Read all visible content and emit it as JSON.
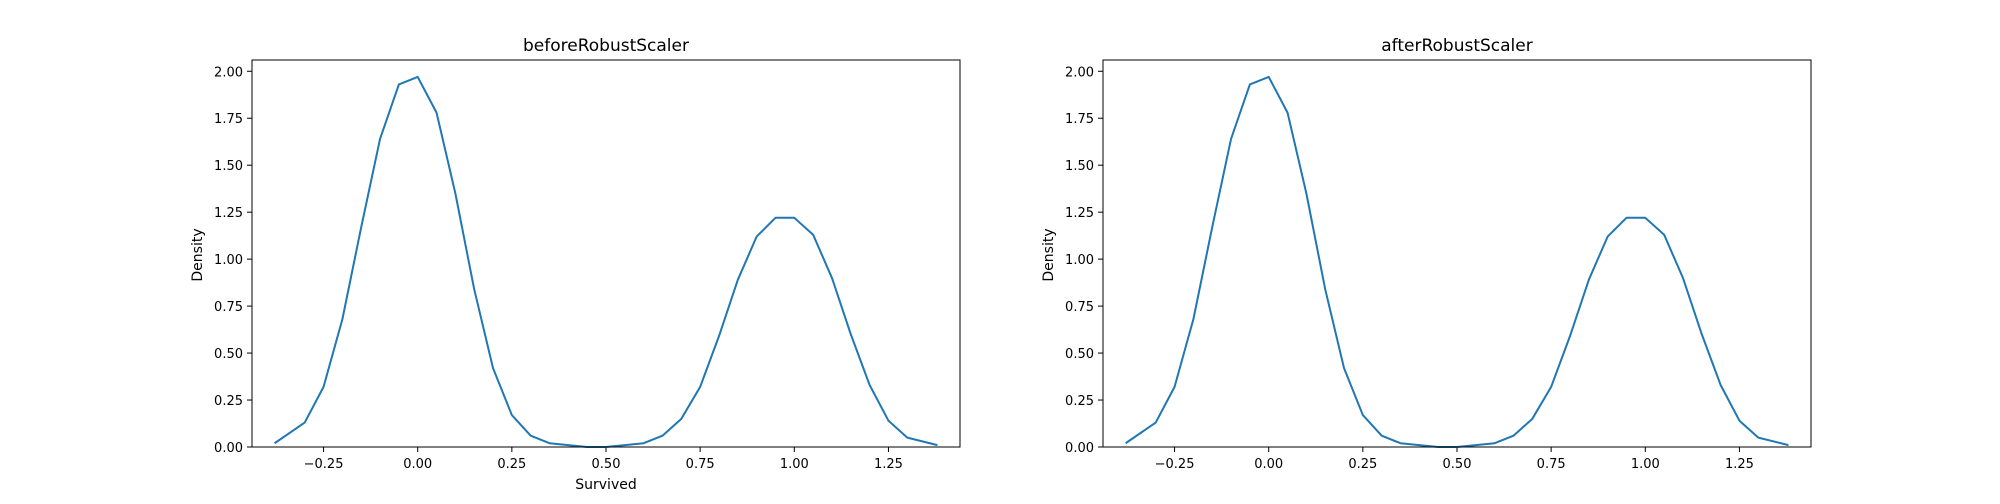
{
  "chart_data": [
    {
      "type": "line",
      "title": "beforeRobustScaler",
      "xlabel": "Survived",
      "ylabel": "Density",
      "xlim": [
        -0.44,
        1.44
      ],
      "ylim": [
        0,
        2.06
      ],
      "xticks": [
        -0.25,
        0.0,
        0.25,
        0.5,
        0.75,
        1.0,
        1.25
      ],
      "xtick_labels": [
        "−0.25",
        "0.00",
        "0.25",
        "0.50",
        "0.75",
        "1.00",
        "1.25"
      ],
      "yticks": [
        0.0,
        0.25,
        0.5,
        0.75,
        1.0,
        1.25,
        1.5,
        1.75,
        2.0
      ],
      "ytick_labels": [
        "0.00",
        "0.25",
        "0.50",
        "0.75",
        "1.00",
        "1.25",
        "1.50",
        "1.75",
        "2.00"
      ],
      "grid": false,
      "color": "#1f77b4",
      "series": [
        {
          "x": [
            -0.38,
            -0.3,
            -0.25,
            -0.2,
            -0.15,
            -0.1,
            -0.05,
            0.0,
            0.05,
            0.1,
            0.15,
            0.2,
            0.25,
            0.3,
            0.35,
            0.4,
            0.45,
            0.5,
            0.55,
            0.6,
            0.65,
            0.7,
            0.75,
            0.8,
            0.85,
            0.9,
            0.95,
            1.0,
            1.05,
            1.1,
            1.15,
            1.2,
            1.25,
            1.3,
            1.38
          ],
          "y": [
            0.02,
            0.13,
            0.32,
            0.68,
            1.17,
            1.64,
            1.93,
            1.97,
            1.78,
            1.35,
            0.84,
            0.42,
            0.17,
            0.06,
            0.02,
            0.01,
            0.0,
            0.0,
            0.01,
            0.02,
            0.06,
            0.15,
            0.32,
            0.59,
            0.89,
            1.12,
            1.22,
            1.22,
            1.13,
            0.9,
            0.6,
            0.33,
            0.14,
            0.05,
            0.01
          ]
        }
      ]
    },
    {
      "type": "line",
      "title": "afterRobustScaler",
      "xlabel": "",
      "ylabel": "Density",
      "xlim": [
        -0.44,
        1.44
      ],
      "ylim": [
        0,
        2.06
      ],
      "xticks": [
        -0.25,
        0.0,
        0.25,
        0.5,
        0.75,
        1.0,
        1.25
      ],
      "xtick_labels": [
        "−0.25",
        "0.00",
        "0.25",
        "0.50",
        "0.75",
        "1.00",
        "1.25"
      ],
      "yticks": [
        0.0,
        0.25,
        0.5,
        0.75,
        1.0,
        1.25,
        1.5,
        1.75,
        2.0
      ],
      "ytick_labels": [
        "0.00",
        "0.25",
        "0.50",
        "0.75",
        "1.00",
        "1.25",
        "1.50",
        "1.75",
        "2.00"
      ],
      "grid": false,
      "color": "#1f77b4",
      "series": [
        {
          "x": [
            -0.38,
            -0.3,
            -0.25,
            -0.2,
            -0.15,
            -0.1,
            -0.05,
            0.0,
            0.05,
            0.1,
            0.15,
            0.2,
            0.25,
            0.3,
            0.35,
            0.4,
            0.45,
            0.5,
            0.55,
            0.6,
            0.65,
            0.7,
            0.75,
            0.8,
            0.85,
            0.9,
            0.95,
            1.0,
            1.05,
            1.1,
            1.15,
            1.2,
            1.25,
            1.3,
            1.38
          ],
          "y": [
            0.02,
            0.13,
            0.32,
            0.68,
            1.17,
            1.64,
            1.93,
            1.97,
            1.78,
            1.35,
            0.84,
            0.42,
            0.17,
            0.06,
            0.02,
            0.01,
            0.0,
            0.0,
            0.01,
            0.02,
            0.06,
            0.15,
            0.32,
            0.59,
            0.89,
            1.12,
            1.22,
            1.22,
            1.13,
            0.9,
            0.6,
            0.33,
            0.14,
            0.05,
            0.01
          ]
        }
      ]
    }
  ]
}
